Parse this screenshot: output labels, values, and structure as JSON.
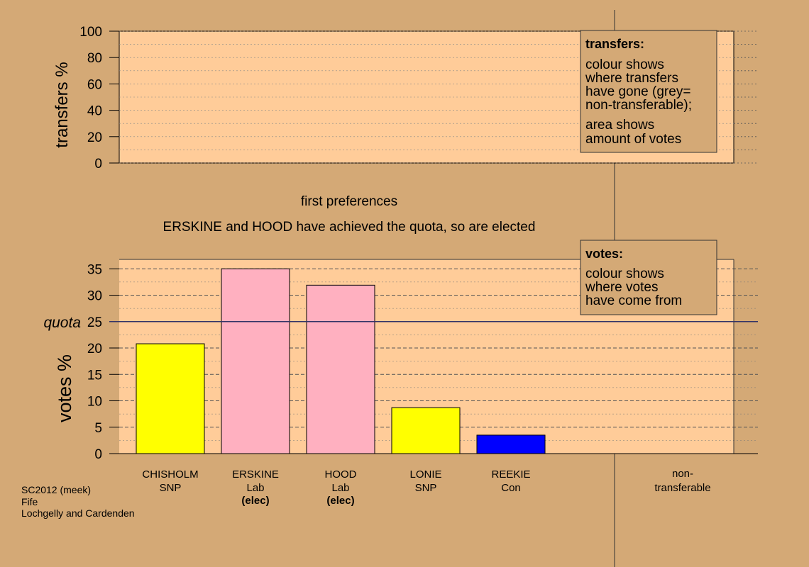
{
  "chart_data": [
    {
      "type": "bar",
      "panel": "transfers",
      "ylabel": "transfers %",
      "ylim": [
        0,
        100
      ],
      "yticks": [
        0,
        20,
        40,
        60,
        80,
        100
      ],
      "categories": [],
      "values": []
    },
    {
      "type": "bar",
      "panel": "votes",
      "stage_label": "first preferences",
      "status_text": "ERSKINE and HOOD have achieved the quota, so are elected",
      "ylabel": "votes %",
      "ylim": [
        0,
        37
      ],
      "yticks": [
        0,
        5,
        10,
        15,
        20,
        25,
        30,
        35
      ],
      "quota": 25,
      "quota_label": "quota",
      "categories": [
        {
          "name": "CHISHOLM",
          "party": "SNP",
          "status": "",
          "value": 20.8,
          "color": "#ffff00"
        },
        {
          "name": "ERSKINE",
          "party": "Lab",
          "status": "(elec)",
          "value": 35.0,
          "color": "#ffb0c0"
        },
        {
          "name": "HOOD",
          "party": "Lab",
          "status": "(elec)",
          "value": 31.9,
          "color": "#ffb0c0"
        },
        {
          "name": "LONIE",
          "party": "SNP",
          "status": "",
          "value": 8.7,
          "color": "#ffff00"
        },
        {
          "name": "REEKIE",
          "party": "Con",
          "status": "",
          "value": 3.5,
          "color": "#0000ff"
        }
      ],
      "nontransferable": {
        "line1": "non-",
        "line2": "transferable",
        "value": 0
      }
    }
  ],
  "legend_transfers": {
    "title": "transfers:",
    "lines1": [
      "colour shows",
      "where transfers",
      "have gone (grey=",
      "non-transferable);"
    ],
    "lines2": [
      "area shows",
      "amount of votes"
    ]
  },
  "legend_votes": {
    "title": "votes:",
    "lines": [
      "colour shows",
      "where votes",
      "have come from"
    ]
  },
  "footer": [
    "SC2012 (meek)",
    "Fife",
    "Lochgelly and Cardenden"
  ],
  "colors": {
    "background": "#d4a976",
    "plot_bg": "#ffcc99",
    "legend_bg": "#d4a976",
    "axis": "#000000",
    "quota_line": "#333366"
  }
}
